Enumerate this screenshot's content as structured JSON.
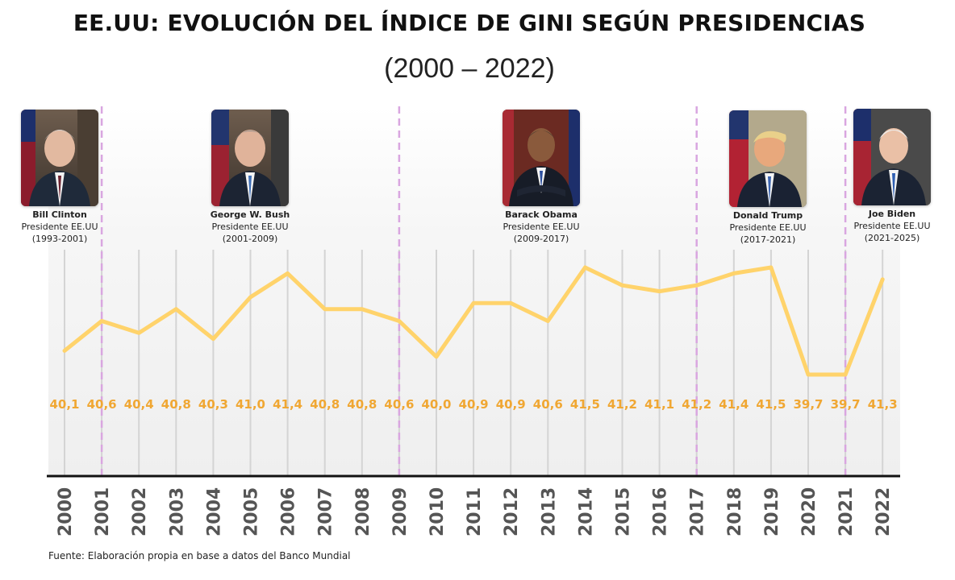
{
  "title": "EE.UU: EVOLUCIÓN DEL ÍNDICE DE GINI SEGÚN PRESIDENCIAS",
  "subtitle": "(2000 – 2022)",
  "source": "Fuente: Elaboración propia en base a datos del Banco Mundial",
  "colors": {
    "line": "#ffd36b",
    "value_label": "#f0a733",
    "divider": "#d9a6e0",
    "gridline": "#d4d4d4",
    "axis": "#111111",
    "year_label": "#555555"
  },
  "presidents": [
    {
      "name": "Bill Clinton",
      "role": "Presidente EE.UU",
      "term": "(1993-2001)"
    },
    {
      "name": "George W. Bush",
      "role": "Presidente EE.UU",
      "term": "(2001-2009)"
    },
    {
      "name": "Barack Obama",
      "role": "Presidente EE.UU",
      "term": "(2009-2017)"
    },
    {
      "name": "Donald Trump",
      "role": "Presidente EE.UU",
      "term": "(2017-2021)"
    },
    {
      "name": "Joe Biden",
      "role": "Presidente EE.UU",
      "term": "(2021-2025)"
    }
  ],
  "chart_data": {
    "type": "line",
    "x": [
      "2000",
      "2001",
      "2002",
      "2003",
      "2004",
      "2005",
      "2006",
      "2007",
      "2008",
      "2009",
      "2010",
      "2011",
      "2012",
      "2013",
      "2014",
      "2015",
      "2016",
      "2017",
      "2018",
      "2019",
      "2020",
      "2021",
      "2022"
    ],
    "series": [
      {
        "values": [
          40.1,
          40.6,
          40.4,
          40.8,
          40.3,
          41.0,
          41.4,
          40.8,
          40.8,
          40.6,
          40.0,
          40.9,
          40.9,
          40.6,
          41.5,
          41.2,
          41.1,
          41.2,
          41.4,
          41.5,
          39.7,
          39.7,
          41.3
        ],
        "labels": [
          "40,1",
          "40,6",
          "40,4",
          "40,8",
          "40,3",
          "41,0",
          "41,4",
          "40,8",
          "40,8",
          "40,6",
          "40,0",
          "40,9",
          "40,9",
          "40,6",
          "41,5",
          "41,2",
          "41,1",
          "41,2",
          "41,4",
          "41,5",
          "39,7",
          "39,7",
          "41,3"
        ]
      }
    ],
    "ylim": [
      39.7,
      41.5
    ],
    "presidency_dividers": [
      "2001",
      "2009",
      "2017",
      "2021"
    ],
    "grid": "vertical",
    "legend": "none"
  }
}
